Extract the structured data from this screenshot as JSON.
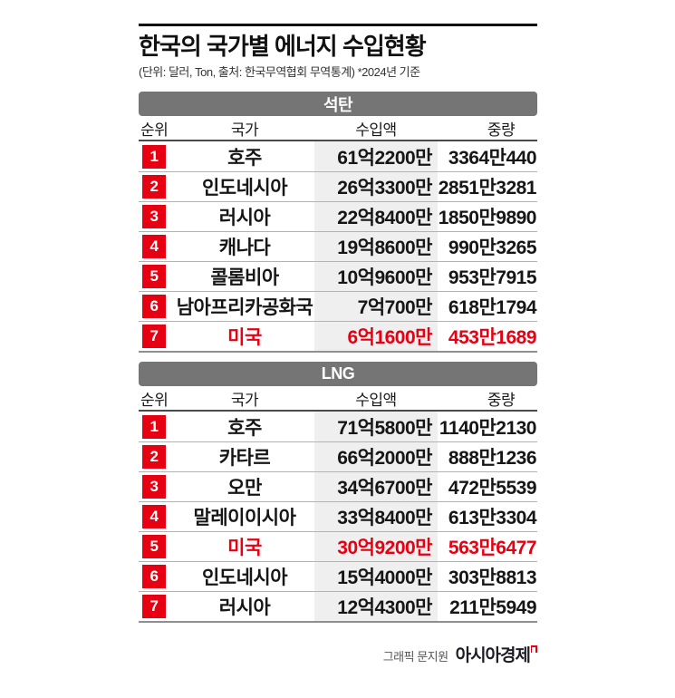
{
  "header": {
    "title": "한국의 국가별 에너지 수입현황",
    "subtitle": "(단위: 달러, Ton, 출처: 한국무역협회 무역통계)  *2024년 기준"
  },
  "chart_data": [
    {
      "type": "table",
      "title": "석탄",
      "columns": {
        "rank": "순위",
        "country": "국가",
        "amount": "수입액",
        "weight": "중량"
      },
      "rows": [
        {
          "rank": "1",
          "country": "호주",
          "amount": "61억2200만",
          "weight": "3364만440",
          "highlight": false
        },
        {
          "rank": "2",
          "country": "인도네시아",
          "amount": "26억3300만",
          "weight": "2851만3281",
          "highlight": false
        },
        {
          "rank": "3",
          "country": "러시아",
          "amount": "22억8400만",
          "weight": "1850만9890",
          "highlight": false
        },
        {
          "rank": "4",
          "country": "캐나다",
          "amount": "19억8600만",
          "weight": "990만3265",
          "highlight": false
        },
        {
          "rank": "5",
          "country": "콜롬비아",
          "amount": "10억9600만",
          "weight": "953만7915",
          "highlight": false
        },
        {
          "rank": "6",
          "country": "남아프리카공화국",
          "amount": "7억700만",
          "weight": "618만1794",
          "highlight": false
        },
        {
          "rank": "7",
          "country": "미국",
          "amount": "6억1600만",
          "weight": "453만1689",
          "highlight": true
        }
      ]
    },
    {
      "type": "table",
      "title": "LNG",
      "columns": {
        "rank": "순위",
        "country": "국가",
        "amount": "수입액",
        "weight": "중량"
      },
      "rows": [
        {
          "rank": "1",
          "country": "호주",
          "amount": "71억5800만",
          "weight": "1140만2130",
          "highlight": false
        },
        {
          "rank": "2",
          "country": "카타르",
          "amount": "66억2000만",
          "weight": "888만1236",
          "highlight": false
        },
        {
          "rank": "3",
          "country": "오만",
          "amount": "34억6700만",
          "weight": "472만5539",
          "highlight": false
        },
        {
          "rank": "4",
          "country": "말레이이시아",
          "amount": "33억8400만",
          "weight": "613만3304",
          "highlight": false
        },
        {
          "rank": "5",
          "country": "미국",
          "amount": "30억9200만",
          "weight": "563만6477",
          "highlight": true
        },
        {
          "rank": "6",
          "country": "인도네시아",
          "amount": "15억4000만",
          "weight": "303만8813",
          "highlight": false
        },
        {
          "rank": "7",
          "country": "러시아",
          "amount": "12억4300만",
          "weight": "211만5949",
          "highlight": false
        }
      ]
    }
  ],
  "footer": {
    "credit": "그래픽 문지원",
    "brand": "아시아경제"
  },
  "colors": {
    "accent_red": "#e60012",
    "bar_gray": "#757575",
    "band_gray": "#efefef",
    "rule_black": "#111111"
  }
}
